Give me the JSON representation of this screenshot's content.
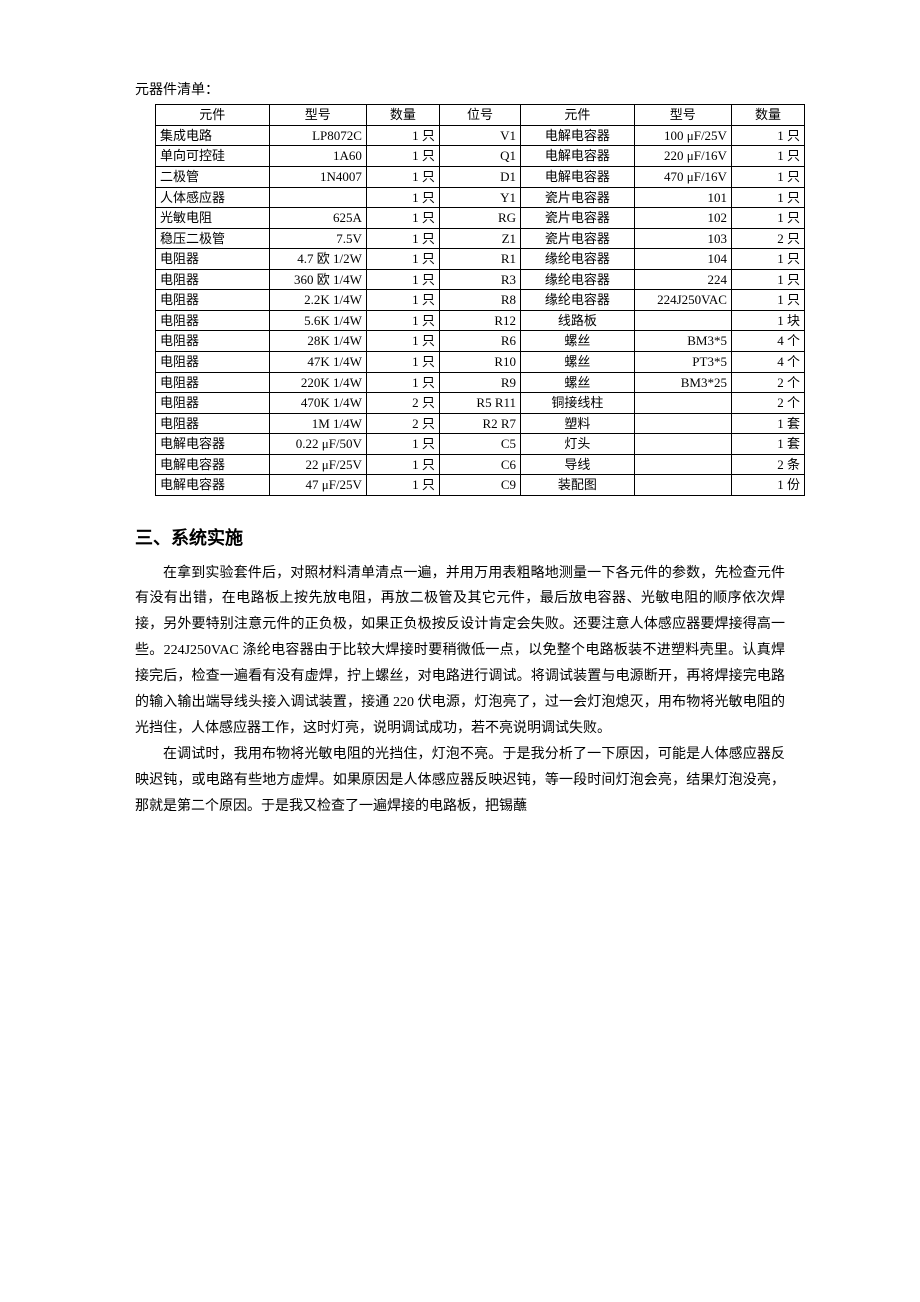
{
  "list_title": "元器件清单：",
  "table": {
    "headers": [
      "元件",
      "型号",
      "数量",
      "位号",
      "元件",
      "型号",
      "数量"
    ],
    "rows": [
      [
        "集成电路",
        "LP8072C",
        "1 只",
        "V1",
        "电解电容器",
        "100 μF/25V",
        "1 只"
      ],
      [
        "单向可控硅",
        "1A60",
        "1 只",
        "Q1",
        "电解电容器",
        "220 μF/16V",
        "1 只"
      ],
      [
        "二极管",
        "1N4007",
        "1 只",
        "D1",
        "电解电容器",
        "470 μF/16V",
        "1 只"
      ],
      [
        "人体感应器",
        "",
        "1 只",
        "Y1",
        "瓷片电容器",
        "101",
        "1 只"
      ],
      [
        "光敏电阻",
        "625A",
        "1 只",
        "RG",
        "瓷片电容器",
        "102",
        "1 只"
      ],
      [
        "稳压二极管",
        "7.5V",
        "1 只",
        "Z1",
        "瓷片电容器",
        "103",
        "2 只"
      ],
      [
        "电阻器",
        "4.7 欧 1/2W",
        "1 只",
        "R1",
        "缘纶电容器",
        "104",
        "1 只"
      ],
      [
        "电阻器",
        "360 欧 1/4W",
        "1 只",
        "R3",
        "缘纶电容器",
        "224",
        "1 只"
      ],
      [
        "电阻器",
        "2.2K 1/4W",
        "1 只",
        "R8",
        "缘纶电容器",
        "224J250VAC",
        "1 只"
      ],
      [
        "电阻器",
        "5.6K 1/4W",
        "1 只",
        "R12",
        "线路板",
        "",
        "1 块"
      ],
      [
        "电阻器",
        "28K 1/4W",
        "1 只",
        "R6",
        "螺丝",
        "BM3*5",
        "4 个"
      ],
      [
        "电阻器",
        "47K 1/4W",
        "1 只",
        "R10",
        "螺丝",
        "PT3*5",
        "4 个"
      ],
      [
        "电阻器",
        "220K 1/4W",
        "1 只",
        "R9",
        "螺丝",
        "BM3*25",
        "2 个"
      ],
      [
        "电阻器",
        "470K 1/4W",
        "2 只",
        "R5 R11",
        "铜接线柱",
        "",
        "2 个"
      ],
      [
        "电阻器",
        "1M 1/4W",
        "2 只",
        "R2 R7",
        "塑料",
        "",
        "1 套"
      ],
      [
        "电解电容器",
        "0.22 μF/50V",
        "1 只",
        "C5",
        "灯头",
        "",
        "1 套"
      ],
      [
        "电解电容器",
        "22 μF/25V",
        "1 只",
        "C6",
        "导线",
        "",
        "2 条"
      ],
      [
        "电解电容器",
        "47 μF/25V",
        "1 只",
        "C9",
        "装配图",
        "",
        "1 份"
      ]
    ]
  },
  "section_heading": "三、系统实施",
  "paragraphs": [
    "在拿到实验套件后，对照材料清单清点一遍，并用万用表粗略地测量一下各元件的参数，先检查元件有没有出错，在电路板上按先放电阻，再放二极管及其它元件，最后放电容器、光敏电阻的顺序依次焊接，另外要特别注意元件的正负极，如果正负极按反设计肯定会失败。还要注意人体感应器要焊接得高一些。224J250VAC 涤纶电容器由于比较大焊接时要稍微低一点，以免整个电路板装不进塑料壳里。认真焊接完后，检查一遍看有没有虚焊，拧上螺丝，对电路进行调试。将调试装置与电源断开，再将焊接完电路的输入输出端导线头接入调试装置，接通 220 伏电源，灯泡亮了，过一会灯泡熄灭，用布物将光敏电阻的光挡住，人体感应器工作，这时灯亮，说明调试成功，若不亮说明调试失败。",
    "在调试时，我用布物将光敏电阻的光挡住，灯泡不亮。于是我分析了一下原因，可能是人体感应器反映迟钝，或电路有些地方虚焊。如果原因是人体感应器反映迟钝，等一段时间灯泡会亮，结果灯泡没亮，那就是第二个原因。于是我又检查了一遍焊接的电路板，把锡蘸"
  ]
}
